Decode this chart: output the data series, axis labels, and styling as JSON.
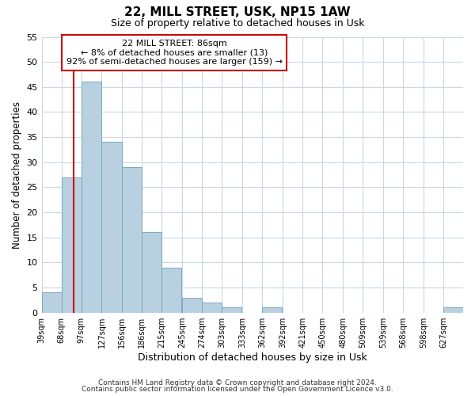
{
  "title": "22, MILL STREET, USK, NP15 1AW",
  "subtitle": "Size of property relative to detached houses in Usk",
  "xlabel": "Distribution of detached houses by size in Usk",
  "ylabel": "Number of detached properties",
  "bar_color": "#b8d0e0",
  "bar_edge_color": "#7aaac8",
  "background_color": "#ffffff",
  "grid_color": "#c8d8e8",
  "vline_x": 86,
  "vline_color": "#cc0000",
  "bins": [
    39,
    68,
    97,
    127,
    156,
    186,
    215,
    245,
    274,
    303,
    333,
    362,
    392,
    421,
    450,
    480,
    509,
    539,
    568,
    598,
    627
  ],
  "counts": [
    4,
    27,
    46,
    34,
    29,
    16,
    9,
    3,
    2,
    1,
    0,
    1,
    0,
    0,
    0,
    0,
    0,
    0,
    0,
    0,
    1
  ],
  "ylim": [
    0,
    55
  ],
  "yticks": [
    0,
    5,
    10,
    15,
    20,
    25,
    30,
    35,
    40,
    45,
    50,
    55
  ],
  "annotation_title": "22 MILL STREET: 86sqm",
  "annotation_line1": "← 8% of detached houses are smaller (13)",
  "annotation_line2": "92% of semi-detached houses are larger (159) →",
  "annotation_box_color": "#ffffff",
  "annotation_box_edge": "#cc0000",
  "footnote1": "Contains HM Land Registry data © Crown copyright and database right 2024.",
  "footnote2": "Contains public sector information licensed under the Open Government Licence v3.0."
}
